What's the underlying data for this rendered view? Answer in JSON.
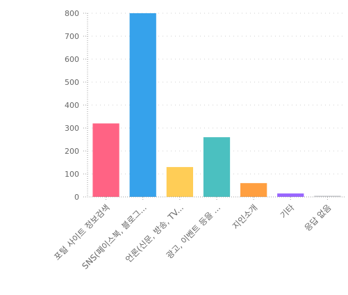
{
  "chart_data": {
    "type": "bar",
    "title": "",
    "xlabel": "",
    "ylabel": "",
    "ylim": [
      0,
      800
    ],
    "yticks": [
      0,
      100,
      200,
      300,
      400,
      500,
      600,
      700,
      800
    ],
    "grid": true,
    "legend": "none",
    "categories": [
      "포털 사이트 정보검색",
      "SNS(페이스북, 블로그...",
      "언론(신문, 방송, TV...",
      "광고, 이벤트 등을 ...",
      "지인소개",
      "기타",
      "응답 없음"
    ],
    "values": [
      320,
      800,
      130,
      260,
      60,
      15,
      5
    ],
    "colors": [
      "#ff6384",
      "#36a2eb",
      "#ffcd56",
      "#4bc0c0",
      "#ff9f40",
      "#9966ff",
      "#c9cbcf"
    ]
  }
}
